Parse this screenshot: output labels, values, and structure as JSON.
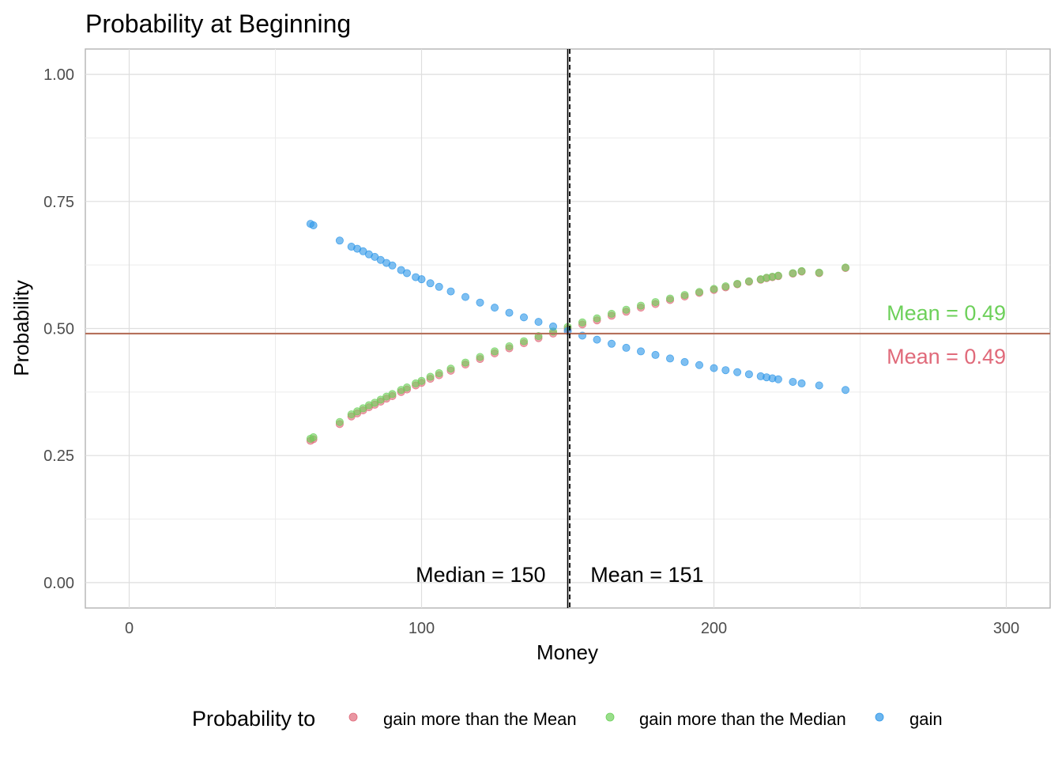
{
  "chart_data": {
    "type": "scatter",
    "title": "Probability at Beginning",
    "xlabel": "Money",
    "ylabel": "Probability",
    "xlim": [
      -15,
      315
    ],
    "ylim": [
      -0.05,
      1.05
    ],
    "x_ticks": [
      0,
      100,
      200,
      300
    ],
    "x_tick_labels": [
      "0",
      "100",
      "200",
      "300"
    ],
    "y_ticks": [
      0,
      0.25,
      0.5,
      0.75,
      1.0
    ],
    "y_tick_labels": [
      "0.00",
      "0.25",
      "0.50",
      "0.75",
      "1.00"
    ],
    "grid": true,
    "legend": {
      "title": "Probability to",
      "position": "bottom",
      "entries": [
        {
          "label": "gain more than the Mean",
          "color": "#e06a7a"
        },
        {
          "label": "gain more than the Median",
          "color": "#6dd05a"
        },
        {
          "label": "gain",
          "color": "#2e97e8"
        }
      ]
    },
    "series": [
      {
        "name": "gain more than the Mean",
        "color": "#e06a7a",
        "x": [
          62,
          63,
          72,
          76,
          78,
          80,
          82,
          84,
          86,
          88,
          90,
          93,
          95,
          98,
          100,
          103,
          106,
          110,
          115,
          120,
          125,
          130,
          135,
          140,
          145,
          150,
          155,
          160,
          165,
          170,
          175,
          180,
          185,
          190,
          195,
          200,
          204,
          208,
          212,
          216,
          218,
          220,
          222,
          227,
          230,
          236,
          245
        ],
        "y": [
          0.279,
          0.282,
          0.312,
          0.327,
          0.333,
          0.339,
          0.345,
          0.35,
          0.356,
          0.362,
          0.367,
          0.375,
          0.38,
          0.388,
          0.393,
          0.401,
          0.408,
          0.417,
          0.429,
          0.44,
          0.451,
          0.461,
          0.471,
          0.481,
          0.49,
          0.499,
          0.508,
          0.516,
          0.525,
          0.533,
          0.541,
          0.548,
          0.556,
          0.563,
          0.57,
          0.576,
          0.581,
          0.587,
          0.592,
          0.596,
          0.599,
          0.601,
          0.603,
          0.608,
          0.612,
          0.609,
          0.619
        ]
      },
      {
        "name": "gain more than the Median",
        "color": "#6dd05a",
        "x": [
          62,
          63,
          72,
          76,
          78,
          80,
          82,
          84,
          86,
          88,
          90,
          93,
          95,
          98,
          100,
          103,
          106,
          110,
          115,
          120,
          125,
          130,
          135,
          140,
          145,
          150,
          155,
          160,
          165,
          170,
          175,
          180,
          185,
          190,
          195,
          200,
          204,
          208,
          212,
          216,
          218,
          220,
          222,
          227,
          230,
          236,
          245
        ],
        "y": [
          0.283,
          0.286,
          0.316,
          0.331,
          0.337,
          0.343,
          0.349,
          0.354,
          0.36,
          0.366,
          0.371,
          0.379,
          0.384,
          0.392,
          0.397,
          0.405,
          0.412,
          0.421,
          0.433,
          0.444,
          0.455,
          0.465,
          0.475,
          0.485,
          0.494,
          0.503,
          0.512,
          0.52,
          0.529,
          0.537,
          0.545,
          0.552,
          0.559,
          0.566,
          0.572,
          0.578,
          0.583,
          0.588,
          0.593,
          0.597,
          0.6,
          0.602,
          0.604,
          0.609,
          0.613,
          0.61,
          0.62
        ]
      },
      {
        "name": "gain",
        "color": "#2e97e8",
        "x": [
          62,
          63,
          72,
          76,
          78,
          80,
          82,
          84,
          86,
          88,
          90,
          93,
          95,
          98,
          100,
          103,
          106,
          110,
          115,
          120,
          125,
          130,
          135,
          140,
          145,
          150,
          155,
          160,
          165,
          170,
          175,
          180,
          185,
          190,
          195,
          200,
          204,
          208,
          212,
          216,
          218,
          220,
          222,
          227,
          230,
          236,
          245
        ],
        "y": [
          0.706,
          0.703,
          0.673,
          0.661,
          0.657,
          0.652,
          0.646,
          0.641,
          0.635,
          0.629,
          0.624,
          0.615,
          0.609,
          0.601,
          0.597,
          0.589,
          0.582,
          0.573,
          0.562,
          0.551,
          0.541,
          0.531,
          0.522,
          0.513,
          0.504,
          0.495,
          0.486,
          0.478,
          0.47,
          0.462,
          0.455,
          0.448,
          0.441,
          0.434,
          0.428,
          0.422,
          0.418,
          0.414,
          0.41,
          0.406,
          0.404,
          0.402,
          0.4,
          0.395,
          0.392,
          0.388,
          0.379
        ]
      }
    ],
    "reference_lines": {
      "vertical": [
        {
          "value": 150,
          "label": "Median = 150",
          "style": "solid",
          "color": "#000000"
        },
        {
          "value": 151,
          "label": "Mean = 151",
          "style": "dashed",
          "color": "#000000"
        }
      ],
      "horizontal": [
        {
          "value": 0.49,
          "label": "Mean = 0.49",
          "color": "#6dd05a"
        },
        {
          "value": 0.49,
          "label": "Mean = 0.49",
          "color": "#e06a7a"
        }
      ],
      "horizontal_line_color": "#b5705a"
    },
    "point_overlap_color": "#b07563"
  }
}
